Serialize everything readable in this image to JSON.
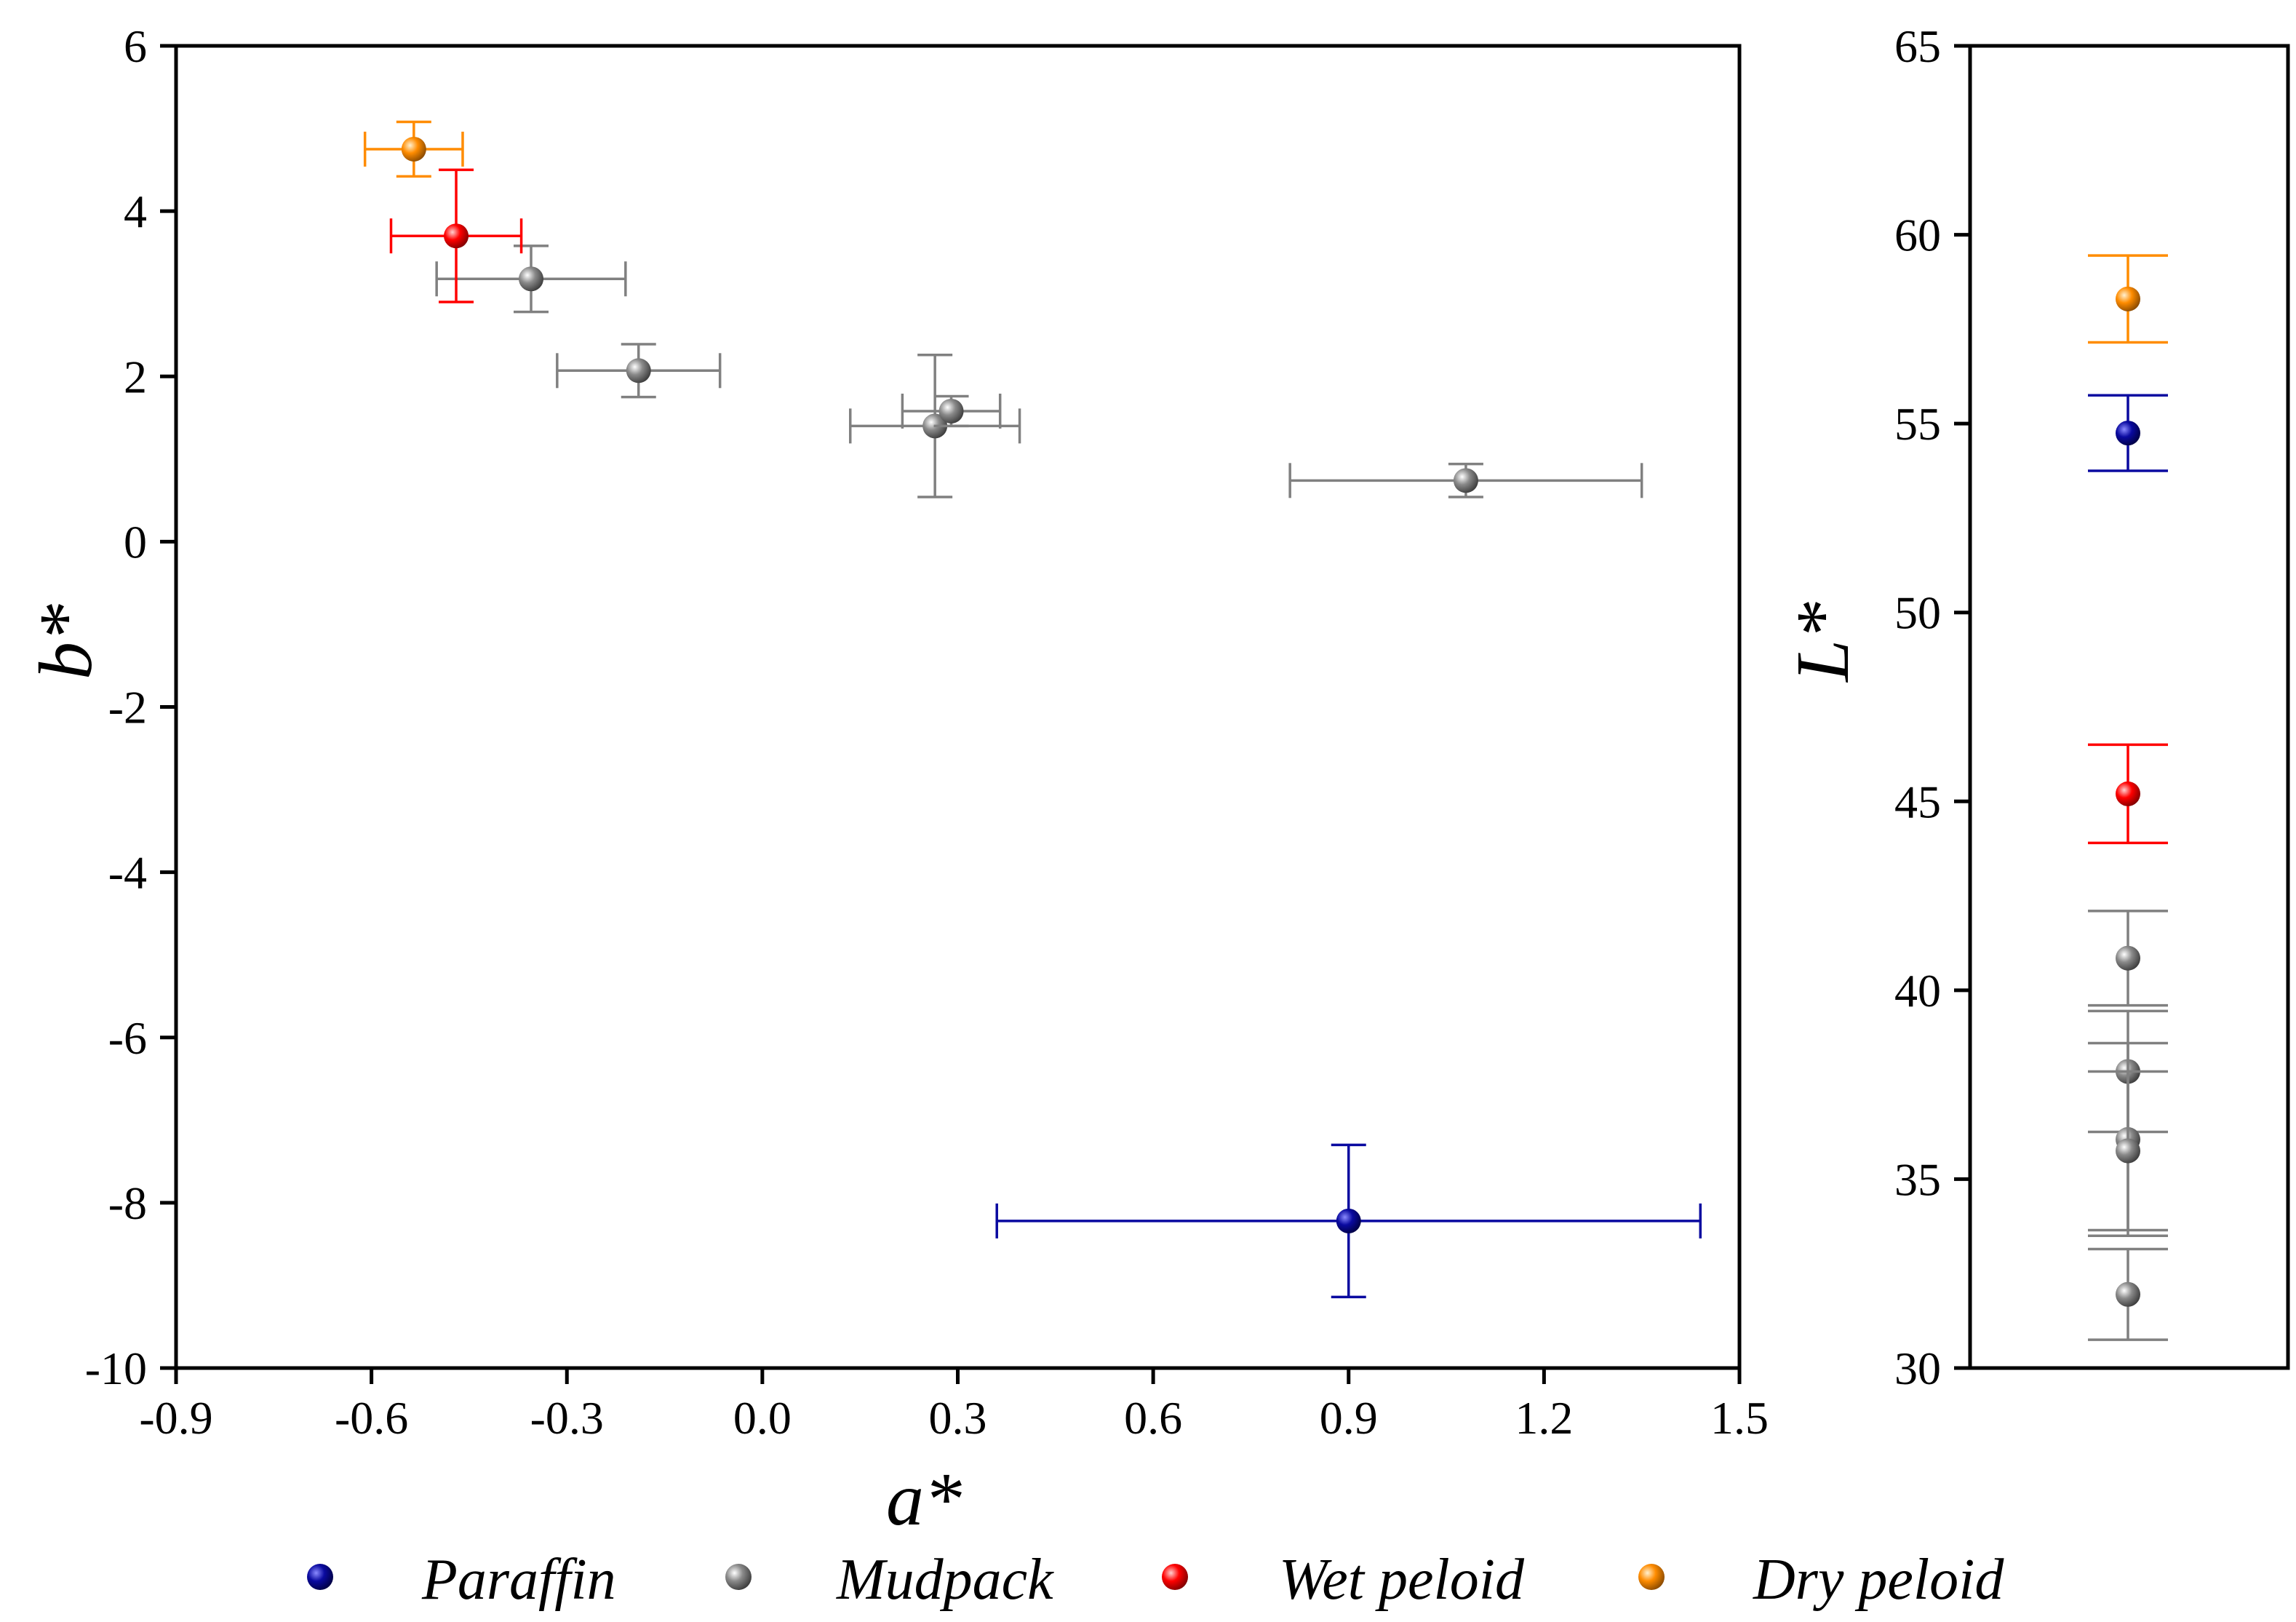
{
  "chart_data": [
    {
      "type": "scatter",
      "id": "ab",
      "xlabel": "a*",
      "ylabel": "b*",
      "xlim": [
        -0.9,
        1.5
      ],
      "ylim": [
        -10,
        6
      ],
      "xticks": [
        "-0.9",
        "-0.6",
        "-0.3",
        "0.0",
        "0.3",
        "0.6",
        "0.9",
        "1.2",
        "1.5"
      ],
      "yticks": [
        "-10",
        "-8",
        "-6",
        "-4",
        "-2",
        "0",
        "2",
        "4",
        "6"
      ],
      "series": [
        {
          "name": "Paraffin",
          "color": "#0a0aa0",
          "points": [
            {
              "x": 0.9,
              "y": -8.22,
              "xerr": 0.54,
              "yerr": 0.92
            }
          ]
        },
        {
          "name": "Mudpack",
          "color": "#808080",
          "points": [
            {
              "x": -0.355,
              "y": 3.18,
              "xerr": 0.145,
              "yerr": 0.4
            },
            {
              "x": -0.19,
              "y": 2.07,
              "xerr": 0.125,
              "yerr": 0.32
            },
            {
              "x": 0.265,
              "y": 1.4,
              "xerr": 0.13,
              "yerr": 0.86
            },
            {
              "x": 0.29,
              "y": 1.58,
              "xerr": 0.075,
              "yerr": 0.18
            },
            {
              "x": 1.08,
              "y": 0.74,
              "xerr": 0.27,
              "yerr": 0.2
            }
          ]
        },
        {
          "name": "Wet peloid",
          "color": "#ff0000",
          "points": [
            {
              "x": -0.47,
              "y": 3.7,
              "xerr": 0.1,
              "yerr": 0.8
            }
          ]
        },
        {
          "name": "Dry peloid",
          "color": "#ff8c00",
          "points": [
            {
              "x": -0.535,
              "y": 4.75,
              "xerr": 0.075,
              "yerr": 0.33
            }
          ]
        }
      ]
    },
    {
      "type": "scatter",
      "id": "L",
      "xlabel": "",
      "ylabel": "L*",
      "ylim": [
        30,
        65
      ],
      "yticks": [
        "30",
        "35",
        "40",
        "45",
        "50",
        "55",
        "60",
        "65"
      ],
      "series": [
        {
          "name": "Paraffin",
          "color": "#0a0aa0",
          "points": [
            {
              "y": 54.75,
              "yerr": 1.0
            }
          ]
        },
        {
          "name": "Mudpack",
          "color": "#808080",
          "points": [
            {
              "y": 40.85,
              "yerr": 1.25
            },
            {
              "y": 37.85,
              "yerr": 1.6
            },
            {
              "y": 36.05,
              "yerr": 2.55
            },
            {
              "y": 35.75,
              "yerr": 2.1
            },
            {
              "y": 31.95,
              "yerr": 1.2
            }
          ]
        },
        {
          "name": "Wet peloid",
          "color": "#ff0000",
          "points": [
            {
              "y": 45.2,
              "yerr": 1.3
            }
          ]
        },
        {
          "name": "Dry peloid",
          "color": "#ff8c00",
          "points": [
            {
              "y": 58.3,
              "yerr": 1.15
            }
          ]
        }
      ]
    }
  ],
  "legend": {
    "items": [
      {
        "label": "Paraffin",
        "color": "#0a0aa0"
      },
      {
        "label": "Mudpack",
        "color": "#808080"
      },
      {
        "label": "Wet peloid",
        "color": "#ff0000"
      },
      {
        "label": "Dry peloid",
        "color": "#ff8c00"
      }
    ]
  }
}
